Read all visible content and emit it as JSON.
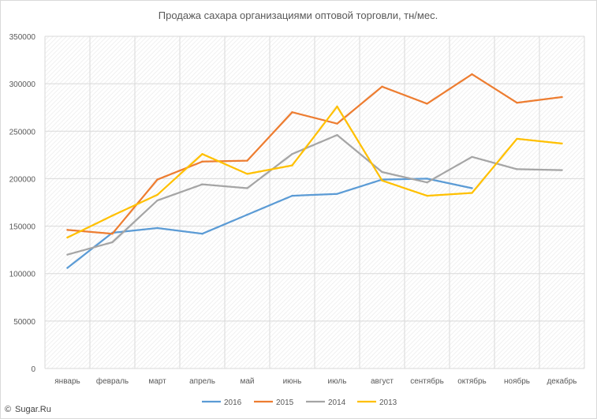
{
  "chart_data": {
    "type": "line",
    "title": "Продажа сахара организациями оптовой торговли, тн/мес.",
    "xlabel": "",
    "ylabel": "",
    "ylim": [
      0,
      350000
    ],
    "yticks": [
      "0",
      "50000",
      "100000",
      "150000",
      "200000",
      "250000",
      "300000",
      "350000"
    ],
    "ytick_values": [
      0,
      50000,
      100000,
      150000,
      200000,
      250000,
      300000,
      350000
    ],
    "categories": [
      "январь",
      "февраль",
      "март",
      "апрель",
      "май",
      "июнь",
      "июль",
      "август",
      "сентябрь",
      "октябрь",
      "ноябрь",
      "декабрь"
    ],
    "grid": "vertical and horizontal, hatched plot area",
    "legend_position": "bottom",
    "series": [
      {
        "name": "2016",
        "color": "#5b9bd5",
        "values": [
          106000,
          143000,
          148000,
          142000,
          162000,
          182000,
          184000,
          199000,
          200000,
          190000,
          null,
          null
        ]
      },
      {
        "name": "2015",
        "color": "#ed7d31",
        "values": [
          146000,
          142000,
          199000,
          218000,
          219000,
          270000,
          258000,
          297000,
          279000,
          310000,
          280000,
          286000
        ]
      },
      {
        "name": "2014",
        "color": "#a5a5a5",
        "values": [
          120000,
          133000,
          177000,
          194000,
          190000,
          226000,
          246000,
          207000,
          196000,
          223000,
          210000,
          209000
        ]
      },
      {
        "name": "2013",
        "color": "#ffc000",
        "values": [
          138000,
          161000,
          183000,
          226000,
          205000,
          214000,
          276000,
          198000,
          182000,
          185000,
          242000,
          237000
        ]
      }
    ]
  },
  "watermark": {
    "symbol": "©",
    "text": "Sugar.Ru"
  }
}
